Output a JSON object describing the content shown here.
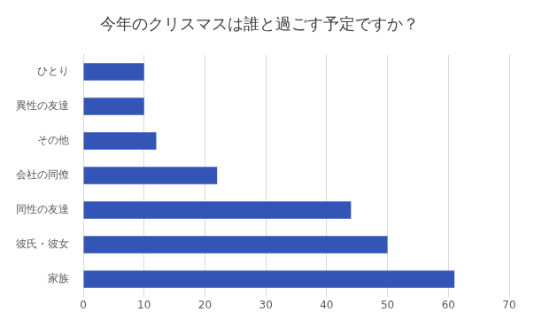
{
  "chart_data": {
    "type": "bar",
    "orientation": "horizontal",
    "title": "今年のクリスマスは誰と過ごす予定ですか？",
    "categories": [
      "ひとり",
      "異性の友達",
      "その他",
      "会社の同僚",
      "同性の友達",
      "彼氏・彼女",
      "家族"
    ],
    "values": [
      10,
      10,
      12,
      22,
      44,
      50,
      61
    ],
    "color": "#3355b8",
    "xlim": [
      0,
      70
    ],
    "xticks": [
      0,
      10,
      20,
      30,
      40,
      50,
      60,
      70
    ],
    "grid": true
  }
}
